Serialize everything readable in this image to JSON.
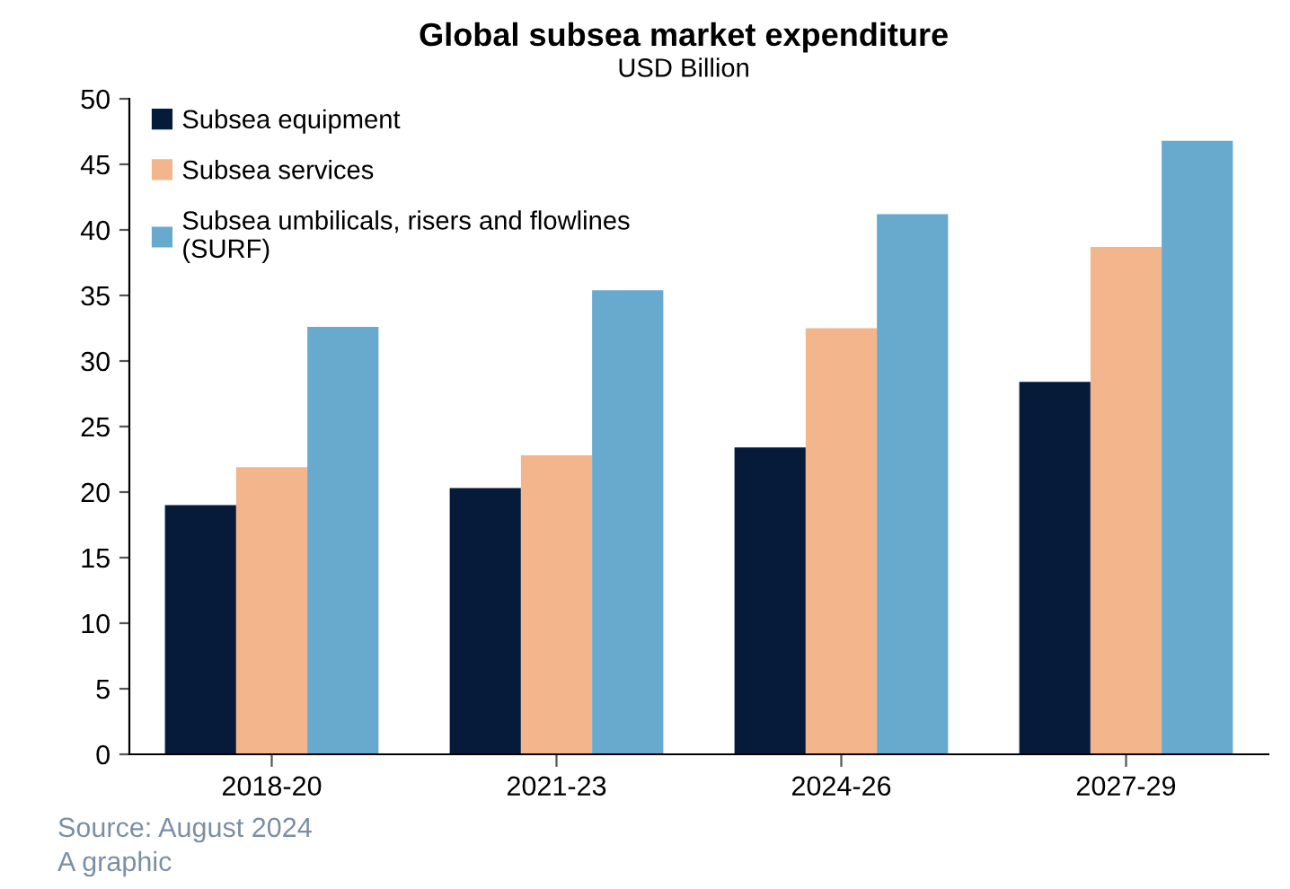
{
  "chart_data": {
    "type": "bar",
    "title": "Global subsea market expenditure",
    "subtitle": "USD Billion",
    "categories": [
      "2018-20",
      "2021-23",
      "2024-26",
      "2027-29"
    ],
    "series": [
      {
        "name": "Subsea equipment",
        "color": "#061a3a",
        "values": [
          19.0,
          20.3,
          23.4,
          28.4
        ]
      },
      {
        "name": "Subsea services",
        "color": "#f2b58c",
        "values": [
          21.9,
          22.8,
          32.5,
          38.7
        ]
      },
      {
        "name": "Subsea umbilicals, risers and flowlines\n(SURF)",
        "color": "#68aacd",
        "values": [
          32.6,
          35.4,
          41.2,
          46.8
        ]
      }
    ],
    "ylim": [
      0,
      50
    ],
    "yticks": [
      0,
      5,
      10,
      15,
      20,
      25,
      30,
      35,
      40,
      45,
      50
    ],
    "grid": false,
    "legend": "top left",
    "annotations": [
      "Source: August 2024",
      "A graphic"
    ]
  }
}
